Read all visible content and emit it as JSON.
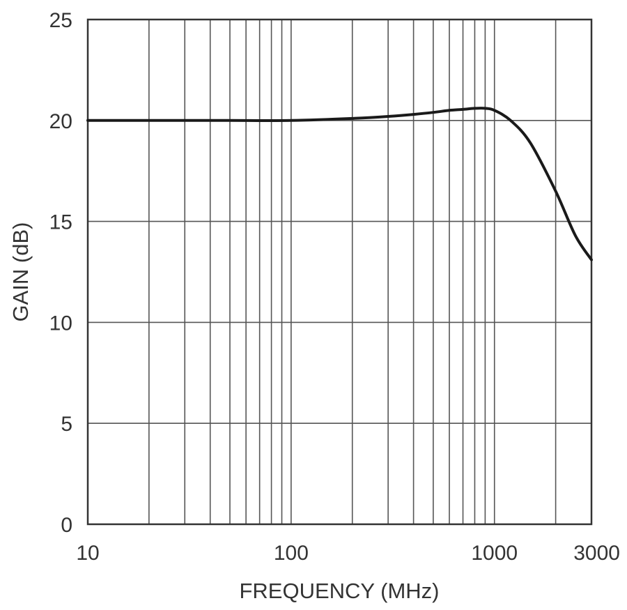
{
  "chart_data": {
    "type": "line",
    "title": "",
    "xlabel": "FREQUENCY (MHz)",
    "ylabel": "GAIN (dB)",
    "xscale": "log",
    "xlim": [
      10,
      3000
    ],
    "ylim": [
      0,
      25
    ],
    "grid": true,
    "legend": "none",
    "x_tick_labels": [
      "10",
      "100",
      "1000",
      "3000"
    ],
    "x_tick_values": [
      10,
      100,
      1000,
      3000
    ],
    "y_tick_labels": [
      "0",
      "5",
      "10",
      "15",
      "20",
      "25"
    ],
    "y_tick_values": [
      0,
      5,
      10,
      15,
      20,
      25
    ],
    "x_minor_gridlines": [
      20,
      30,
      40,
      50,
      60,
      70,
      80,
      90,
      200,
      300,
      400,
      500,
      600,
      700,
      800,
      900,
      2000
    ],
    "series": [
      {
        "x": [
          10,
          20,
          30,
          50,
          100,
          200,
          300,
          400,
          500,
          600,
          700,
          800,
          900,
          1000,
          1200,
          1500,
          2000,
          2500,
          3000
        ],
        "y": [
          20.0,
          20.0,
          20.0,
          20.0,
          20.0,
          20.1,
          20.2,
          20.3,
          20.4,
          20.5,
          20.55,
          20.6,
          20.6,
          20.5,
          20.0,
          18.9,
          16.5,
          14.3,
          13.1
        ]
      }
    ],
    "colors": {
      "line": "#1a1a1a",
      "grid": "#555555",
      "frame": "#333333",
      "text": "#333333"
    }
  }
}
